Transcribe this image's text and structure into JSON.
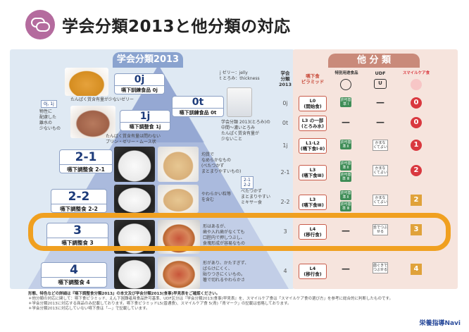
{
  "title": "学会分類2013と他分類の対応",
  "banners": {
    "left": "学会分類2013",
    "right": "他 分 類"
  },
  "table_headers": {
    "col_gakkai": "学会\n分類\n2013",
    "col_pyramid": "嚥下食\nピラミッド",
    "col_tokubetsu": "特別用途食品",
    "col_udf": "UDF",
    "col_smile": "スマイルケア食"
  },
  "levels": [
    {
      "code": "0j",
      "name": "嚥下訓練食品 0j",
      "num": "0j",
      "pyramid": "L0\n(開始食)",
      "special": [
        "許可基準 Ⅰ"
      ],
      "udf": "—",
      "smile": "0",
      "smile_type": "red"
    },
    {
      "code": "0t",
      "name": "嚥下訓練食品 0t",
      "num": "0t",
      "pyramid": "L3 の一部\n(とろみ水)",
      "special": [],
      "udf": "—",
      "smile": "0",
      "smile_type": "red"
    },
    {
      "code": "1j",
      "name": "嚥下調整食 1j",
      "num": "1j",
      "pyramid": "L1·L2\n(嚥下食Ⅰ·Ⅱ)",
      "special": [
        "許可基準 Ⅱ"
      ],
      "udf": "かまなくてよい",
      "smile": "1",
      "smile_type": "red"
    },
    {
      "code": "2-1",
      "name": "嚥下調整食 2-1",
      "num": "2-1",
      "pyramid": "L3\n(嚥下食Ⅲ)",
      "special": [
        "許可基準 Ⅱ",
        "許可基準 Ⅲ"
      ],
      "udf": "かまなくてよい",
      "smile": "2",
      "smile_type": "red"
    },
    {
      "code": "2-2",
      "name": "嚥下調整食 2-2",
      "num": "2-2",
      "pyramid": "L3\n(嚥下食Ⅲ)",
      "special": [
        "許可基準 Ⅱ",
        "許可基準 Ⅲ"
      ],
      "udf": "かまなくてよい",
      "smile": "2",
      "smile_type": "yellow"
    },
    {
      "code": "3",
      "name": "嚥下調整食 3",
      "num": "3",
      "pyramid": "L4\n(移行食)",
      "special": [],
      "udf": "舌でつぶせる",
      "smile": "3",
      "smile_type": "yellow"
    },
    {
      "code": "4",
      "name": "嚥下調整食 4",
      "num": "4",
      "pyramid": "L4\n(移行食)",
      "special": [],
      "udf": "歯ぐきでつぶせる",
      "smile": "4",
      "smile_type": "yellow"
    }
  ],
  "notes": {
    "n0j1j_tag": "0j, 1j",
    "n0j1j": "物性に\n配慮した\n離水の\n少ないもの",
    "n0j": "たんぱく質含有量が少ないゼリー",
    "n1j": "たんぱく質含有量は問わない\nプリン・ゼリー・ムース状",
    "n0t_legend": "j ゼリー：jelly\nt とろみ：thickness",
    "n0t": "学会分類 2013(とろみ)の\n中間〜濃いとろみ\nたんぱく質含有量が\n少ないこと",
    "n21": "均質で\nなめらかなもの\n(べたつかず\nまとまりやすいもの)",
    "n22": "やわらかい粒等\nを含む",
    "tag2": "2-1\n2-2",
    "n2": "べたつかず\nまとまりやすい\nミキサー食",
    "n3": "形はあるが、\n歯や入れ歯がなくても\n口腔内で押しつぶし、\n食塊形成が容易なもの",
    "n4": "形があり、かたすぎず、\nばらけにくく、\n貼りつきにくいもの。\n箸で切れるやわらかさ"
  },
  "footer": {
    "line1": "形態、特色などの詳細は『嚥下調整食分類2013』の本文及び学会分類2013(食事)早見表をご確認ください。",
    "line2": "＊他分類の対応に関して：嚥下食ピラミッド、えん下困難者用食品許可基準、UDF区分は『学会分類2013(食事)早見表』を、スマイルケア食は「スマイルケア食の選び方」を参考に総合的に判断したものです。",
    "line3": "＊学会分類2013に対応する商品のみ記載しております。嚥下食ピラミッドL5(普通食)、スマイルケア食 5(青)「青マーク」の記載は省略しております。",
    "line4": "＊学会分類2013に対応していない嚥下食は「—」で記載しています。"
  },
  "brand": "栄養指導Navi",
  "icons": {
    "logo": "chat-bubbles-icon",
    "tokubetsu": "person-icon",
    "udf": "udf-logo-icon",
    "smile": "smile-care-icon"
  },
  "colors": {
    "highlight": "#f0a020",
    "smile_red": "#d9383f",
    "smile_yellow": "#e0a23a",
    "accent": "#b46b9e"
  }
}
